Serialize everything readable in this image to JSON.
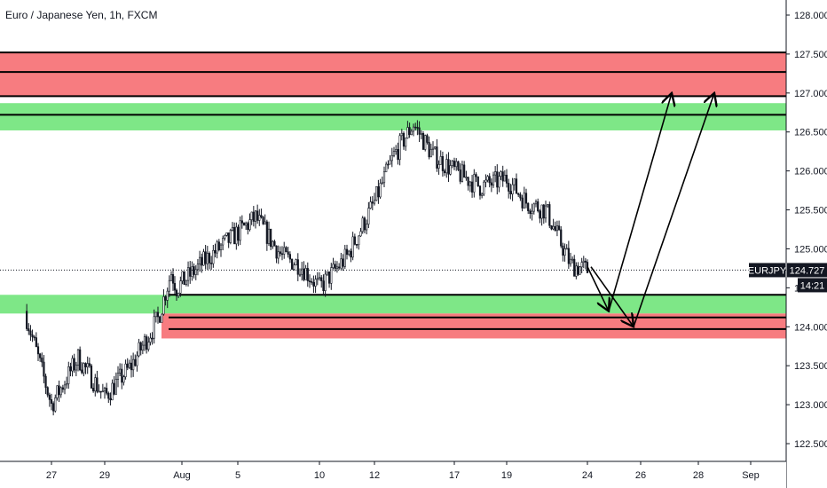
{
  "header": {
    "title": "Euro / Japanese Yen, 1h, FXCM"
  },
  "price_scale": {
    "ticks": [
      "128.000",
      "127.500",
      "127.000",
      "126.500",
      "126.000",
      "125.500",
      "125.000",
      "124.500",
      "124.000",
      "123.500",
      "123.000",
      "122.500"
    ],
    "symbol_badge": "EURJPY",
    "price_badge": "124.727",
    "countdown_badge": "14:21",
    "badge_color": "#131722"
  },
  "time_scale": {
    "ticks": [
      "27",
      "29",
      "Aug",
      "5",
      "10",
      "12",
      "17",
      "19",
      "24",
      "26",
      "28",
      "Sep"
    ]
  },
  "colors": {
    "supply_zone": "#f77c80",
    "demand_zone": "#7ee787",
    "candles": "#131722"
  },
  "chart_data": {
    "type": "candlestick",
    "title": "Euro / Japanese Yen, 1h, FXCM",
    "symbol": "EURJPY",
    "timeframe": "1h",
    "source": "FXCM",
    "ylim": [
      122.3,
      128.1
    ],
    "last_price": 124.727,
    "close_path": [
      {
        "x": "Jul 25",
        "y": 124.2
      },
      {
        "x": "Jul 26",
        "y": 123.6
      },
      {
        "x": "Jul 27",
        "y": 123.0
      },
      {
        "x": "Jul 28",
        "y": 123.6
      },
      {
        "x": "Jul 29",
        "y": 123.1
      },
      {
        "x": "Jul 30",
        "y": 123.5
      },
      {
        "x": "Jul 31",
        "y": 124.1
      },
      {
        "x": "Aug 1",
        "y": 124.7
      },
      {
        "x": "Aug 2",
        "y": 124.5
      },
      {
        "x": "Aug 4",
        "y": 124.9
      },
      {
        "x": "Aug 6",
        "y": 125.4
      },
      {
        "x": "Aug 8",
        "y": 124.9
      },
      {
        "x": "Aug 9",
        "y": 124.8
      },
      {
        "x": "Aug 10",
        "y": 124.5
      },
      {
        "x": "Aug 11",
        "y": 124.9
      },
      {
        "x": "Aug 12",
        "y": 125.6
      },
      {
        "x": "Aug 13",
        "y": 126.2
      },
      {
        "x": "Aug 14",
        "y": 126.6
      },
      {
        "x": "Aug 15",
        "y": 126.2
      },
      {
        "x": "Aug 17",
        "y": 126.0
      },
      {
        "x": "Aug 18",
        "y": 125.8
      },
      {
        "x": "Aug 19",
        "y": 125.9
      },
      {
        "x": "Aug 20",
        "y": 125.6
      },
      {
        "x": "Aug 21",
        "y": 125.5
      },
      {
        "x": "Aug 23",
        "y": 124.8
      },
      {
        "x": "Aug 24",
        "y": 124.727
      }
    ],
    "zones": [
      {
        "kind": "supply",
        "from": 126.95,
        "to": 127.52,
        "lines": [
          127.52,
          127.27,
          126.96
        ]
      },
      {
        "kind": "demand",
        "from": 126.52,
        "to": 126.87,
        "lines": [
          126.72
        ]
      },
      {
        "kind": "demand",
        "from": 124.17,
        "to": 124.41,
        "lines": [
          124.41
        ]
      },
      {
        "kind": "supply",
        "from": 123.85,
        "to": 124.17,
        "lines": [
          124.12,
          123.97
        ]
      }
    ],
    "projections": [
      {
        "points": [
          {
            "x": "Aug 24",
            "y": 124.77
          },
          {
            "x": "Aug 25",
            "y": 124.2
          },
          {
            "x": "Aug 27",
            "y": 127.0
          }
        ]
      },
      {
        "points": [
          {
            "x": "Aug 24",
            "y": 124.77
          },
          {
            "x": "Aug 25",
            "y": 124.0
          },
          {
            "x": "Aug 28",
            "y": 127.0
          }
        ]
      }
    ]
  }
}
